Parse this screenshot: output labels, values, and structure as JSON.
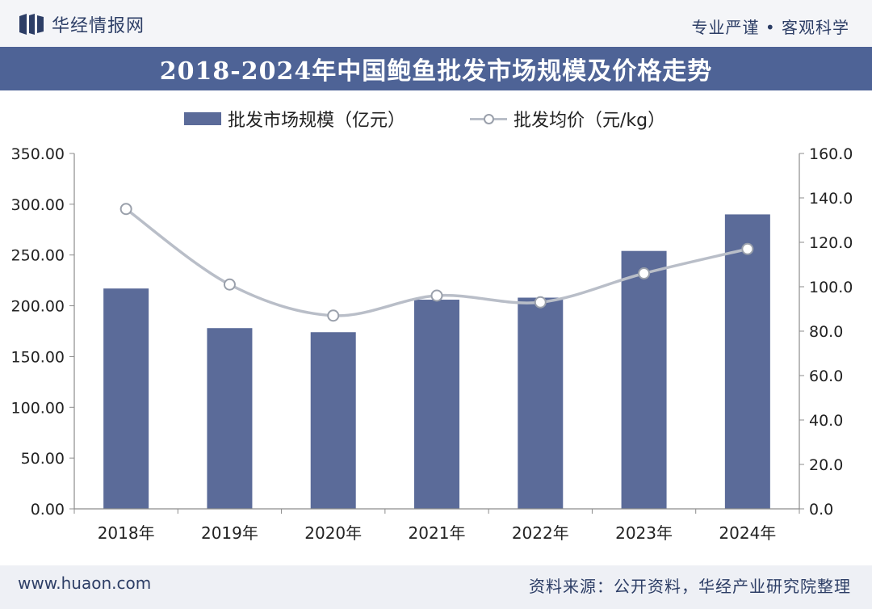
{
  "header": {
    "brand": "华经情报网",
    "slogan": "专业严谨 • 客观科学",
    "title": "2018-2024年中国鲍鱼批发市场规模及价格走势"
  },
  "footer": {
    "website": "www.huaon.com",
    "source": "资料来源：公开资料，华经产业研究院整理"
  },
  "colors": {
    "bar": "#5b6b99",
    "line": "#b9bec8",
    "marker_stroke": "#9aa0ab",
    "title_bg": "#4e6396"
  },
  "chart_data": {
    "type": "bar+line",
    "title": "2018-2024年中国鲍鱼批发市场规模及价格走势",
    "categories": [
      "2018年",
      "2019年",
      "2020年",
      "2021年",
      "2022年",
      "2023年",
      "2024年"
    ],
    "series": [
      {
        "name": "批发市场规模（亿元）",
        "type": "bar",
        "axis": "left",
        "values": [
          217,
          178,
          174,
          206,
          208,
          254,
          290
        ]
      },
      {
        "name": "批发均价（元/kg）",
        "type": "line",
        "axis": "right",
        "values": [
          135,
          101,
          87,
          96,
          93,
          106,
          117
        ]
      }
    ],
    "y_left": {
      "min": 0,
      "max": 350,
      "step": 50,
      "tick_labels": [
        "0.00",
        "50.00",
        "100.00",
        "150.00",
        "200.00",
        "250.00",
        "300.00",
        "350.00"
      ]
    },
    "y_right": {
      "min": 0,
      "max": 160,
      "step": 20,
      "tick_labels": [
        "0.0",
        "20.0",
        "40.0",
        "60.0",
        "80.0",
        "100.0",
        "120.0",
        "140.0",
        "160.0"
      ]
    },
    "grid": false,
    "legend_position": "top-center"
  }
}
